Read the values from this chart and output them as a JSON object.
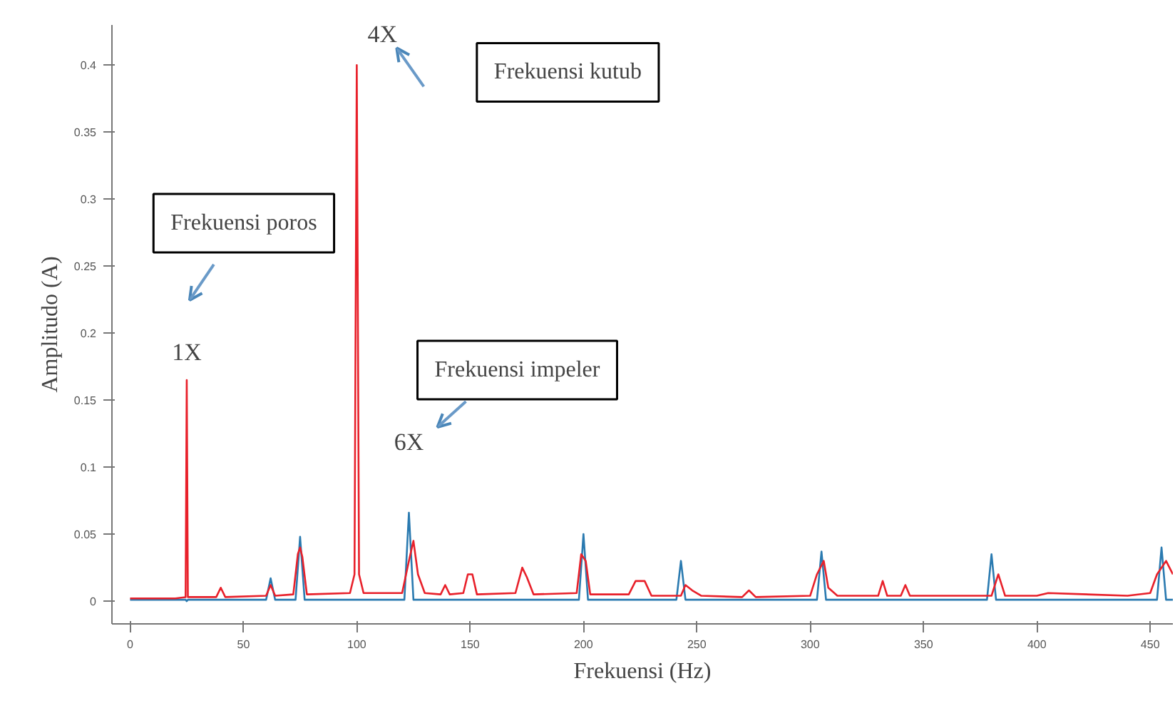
{
  "chart_data": {
    "type": "line",
    "xlabel": "Frekuensi (Hz)",
    "ylabel": "Amplitudo (A)",
    "xlim": [
      -8,
      460
    ],
    "ylim": [
      -0.017,
      0.43
    ],
    "xticks": [
      0,
      50,
      100,
      150,
      200,
      250,
      300,
      350,
      400,
      450
    ],
    "yticks": [
      0,
      0.05,
      0.1,
      0.15,
      0.2,
      0.25,
      0.3,
      0.35,
      0.4
    ],
    "grid": false,
    "marker": "none",
    "line_style": "solid",
    "series": [
      {
        "color": "#2a7ab0",
        "x": [
          0,
          24.5,
          25,
          25.5,
          60,
          62,
          64,
          73,
          75,
          77,
          121,
          123,
          125,
          198,
          200,
          202,
          241,
          243,
          245,
          303,
          305,
          307,
          378,
          380,
          382,
          453,
          455,
          457,
          460
        ],
        "values": [
          0.001,
          0.001,
          null,
          0.001,
          0.001,
          0.017,
          0.001,
          0.001,
          0.048,
          0.001,
          0.001,
          0.066,
          0.001,
          0.001,
          0.05,
          0.001,
          0.001,
          0.03,
          0.001,
          0.001,
          0.037,
          0.001,
          0.001,
          0.035,
          0.001,
          0.001,
          0.04,
          0.001,
          0.001
        ]
      },
      {
        "color": "#e8202a",
        "x": [
          0,
          20,
          24.5,
          25,
          25.5,
          38,
          40,
          42,
          60,
          62,
          64,
          72,
          74,
          75,
          76,
          78,
          97,
          99,
          100,
          101,
          103,
          120,
          123,
          125,
          127,
          130,
          137,
          139,
          141,
          147,
          149,
          151,
          153,
          170,
          173,
          175,
          178,
          197,
          199,
          201,
          203,
          220,
          223,
          227,
          230,
          243,
          245,
          248,
          252,
          270,
          273,
          276,
          300,
          303,
          306,
          308,
          312,
          330,
          332,
          334,
          340,
          342,
          344,
          380,
          383,
          386,
          400,
          405,
          440,
          450,
          453,
          457,
          460
        ],
        "values": [
          0.002,
          0.002,
          0.003,
          0.165,
          0.003,
          0.003,
          0.01,
          0.003,
          0.004,
          0.012,
          0.004,
          0.005,
          0.035,
          0.04,
          0.033,
          0.005,
          0.006,
          0.02,
          0.4,
          0.02,
          0.006,
          0.006,
          0.03,
          0.045,
          0.02,
          0.006,
          0.005,
          0.012,
          0.005,
          0.006,
          0.02,
          0.02,
          0.005,
          0.006,
          0.025,
          0.018,
          0.005,
          0.006,
          0.035,
          0.03,
          0.005,
          0.005,
          0.015,
          0.015,
          0.004,
          0.004,
          0.012,
          0.008,
          0.004,
          0.003,
          0.008,
          0.003,
          0.004,
          0.02,
          0.03,
          0.01,
          0.004,
          0.004,
          0.015,
          0.004,
          0.004,
          0.012,
          0.004,
          0.004,
          0.02,
          0.004,
          0.004,
          0.006,
          0.004,
          0.006,
          0.02,
          0.03,
          0.02
        ]
      }
    ],
    "annotations": [
      {
        "text": "1X",
        "x": 25,
        "y": 0.165
      },
      {
        "text": "4X",
        "x": 100,
        "y": 0.4
      },
      {
        "text": "6X",
        "x": 123,
        "y": 0.066
      },
      "Frekuensi poros",
      "Frekuensi kutub",
      "Frekuensi impeler"
    ]
  }
}
